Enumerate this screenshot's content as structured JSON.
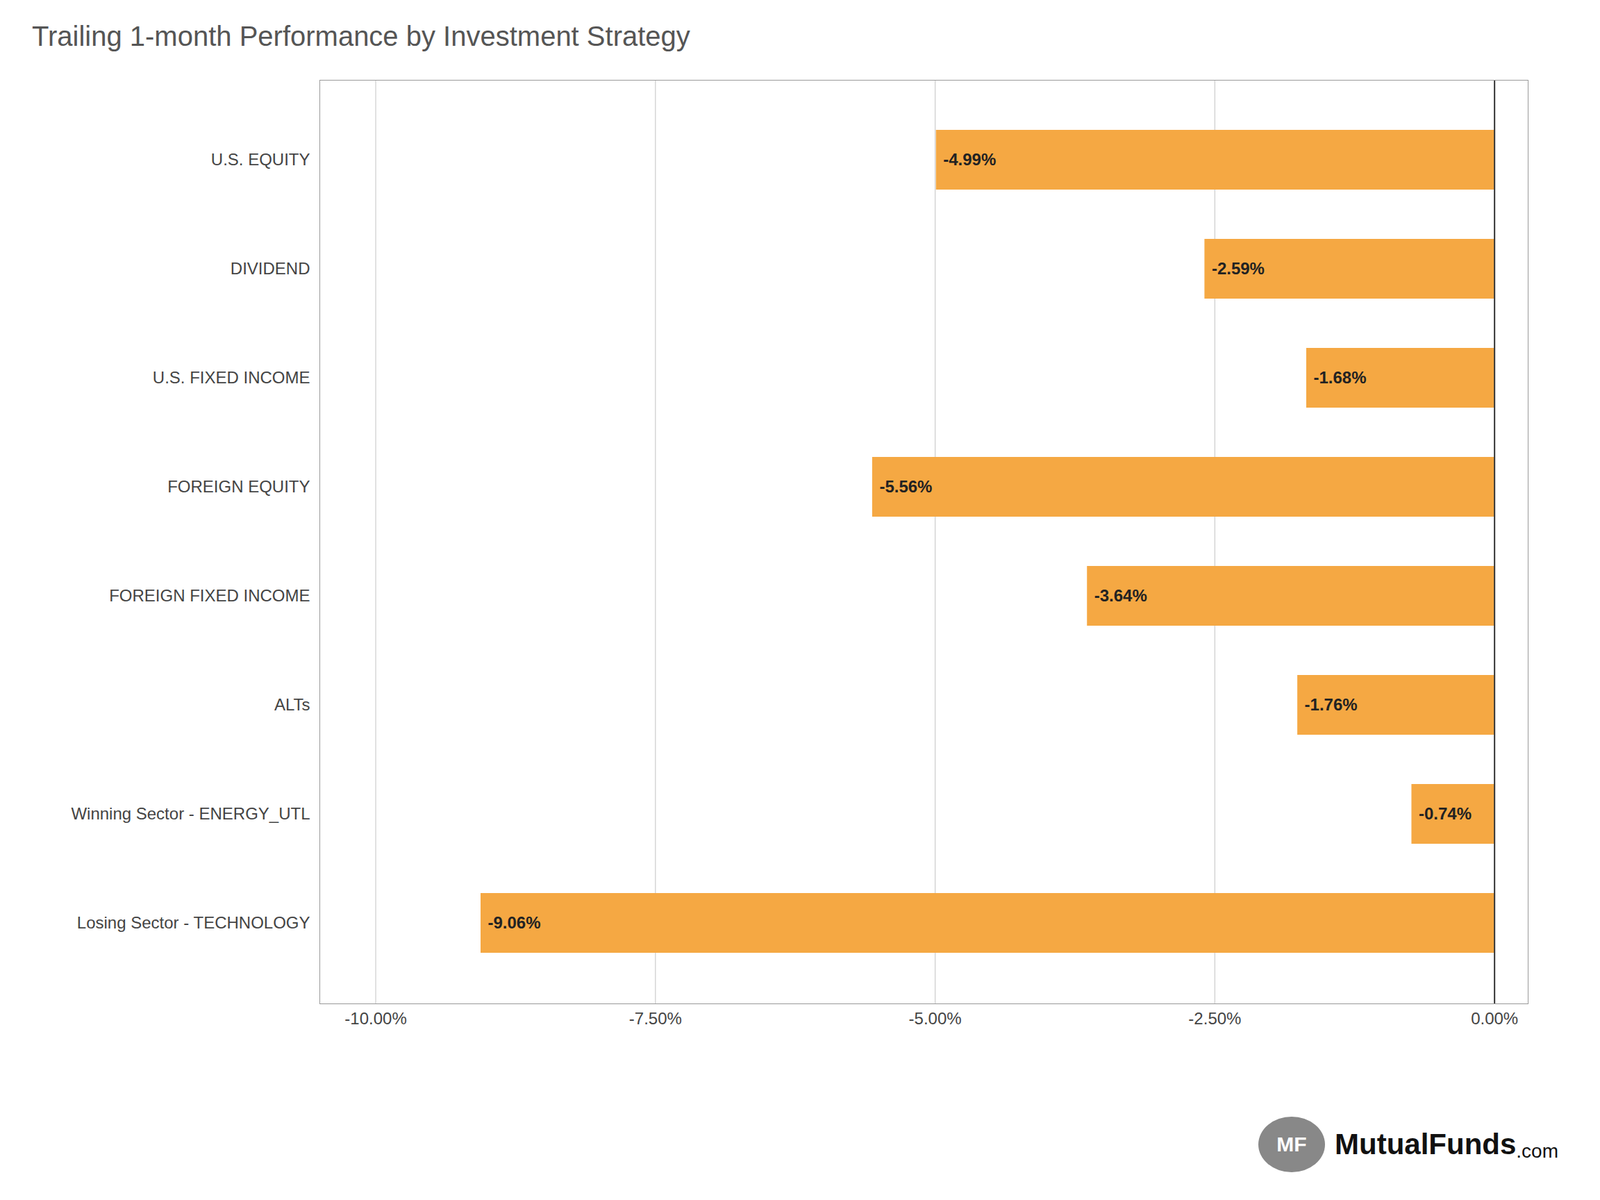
{
  "chart_data": {
    "type": "bar",
    "orientation": "horizontal",
    "title": "Trailing 1-month Performance by Investment Strategy",
    "categories": [
      "U.S. EQUITY",
      "DIVIDEND",
      "U.S. FIXED INCOME",
      "FOREIGN EQUITY",
      "FOREIGN FIXED INCOME",
      "ALTs",
      "Winning Sector - ENERGY_UTL",
      "Losing Sector - TECHNOLOGY"
    ],
    "values": [
      -4.99,
      -2.59,
      -1.68,
      -5.56,
      -3.64,
      -1.76,
      -0.74,
      -9.06
    ],
    "value_labels": [
      "-4.99%",
      "-2.59%",
      "-1.68%",
      "-5.56%",
      "-3.64%",
      "-1.76%",
      "-0.74%",
      "-9.06%"
    ],
    "data_labels": true,
    "color": "#F5A843",
    "xlim": [
      -10.5,
      0.3
    ],
    "xticks": [
      {
        "value": -10.0,
        "label": "-10.00%"
      },
      {
        "value": -7.5,
        "label": "-7.50%"
      },
      {
        "value": -5.0,
        "label": "-5.00%"
      },
      {
        "value": -2.5,
        "label": "-2.50%"
      },
      {
        "value": 0.0,
        "label": "0.00%"
      }
    ],
    "grid": true,
    "annotations": [
      "MF",
      "MutualFunds",
      ".com"
    ]
  }
}
